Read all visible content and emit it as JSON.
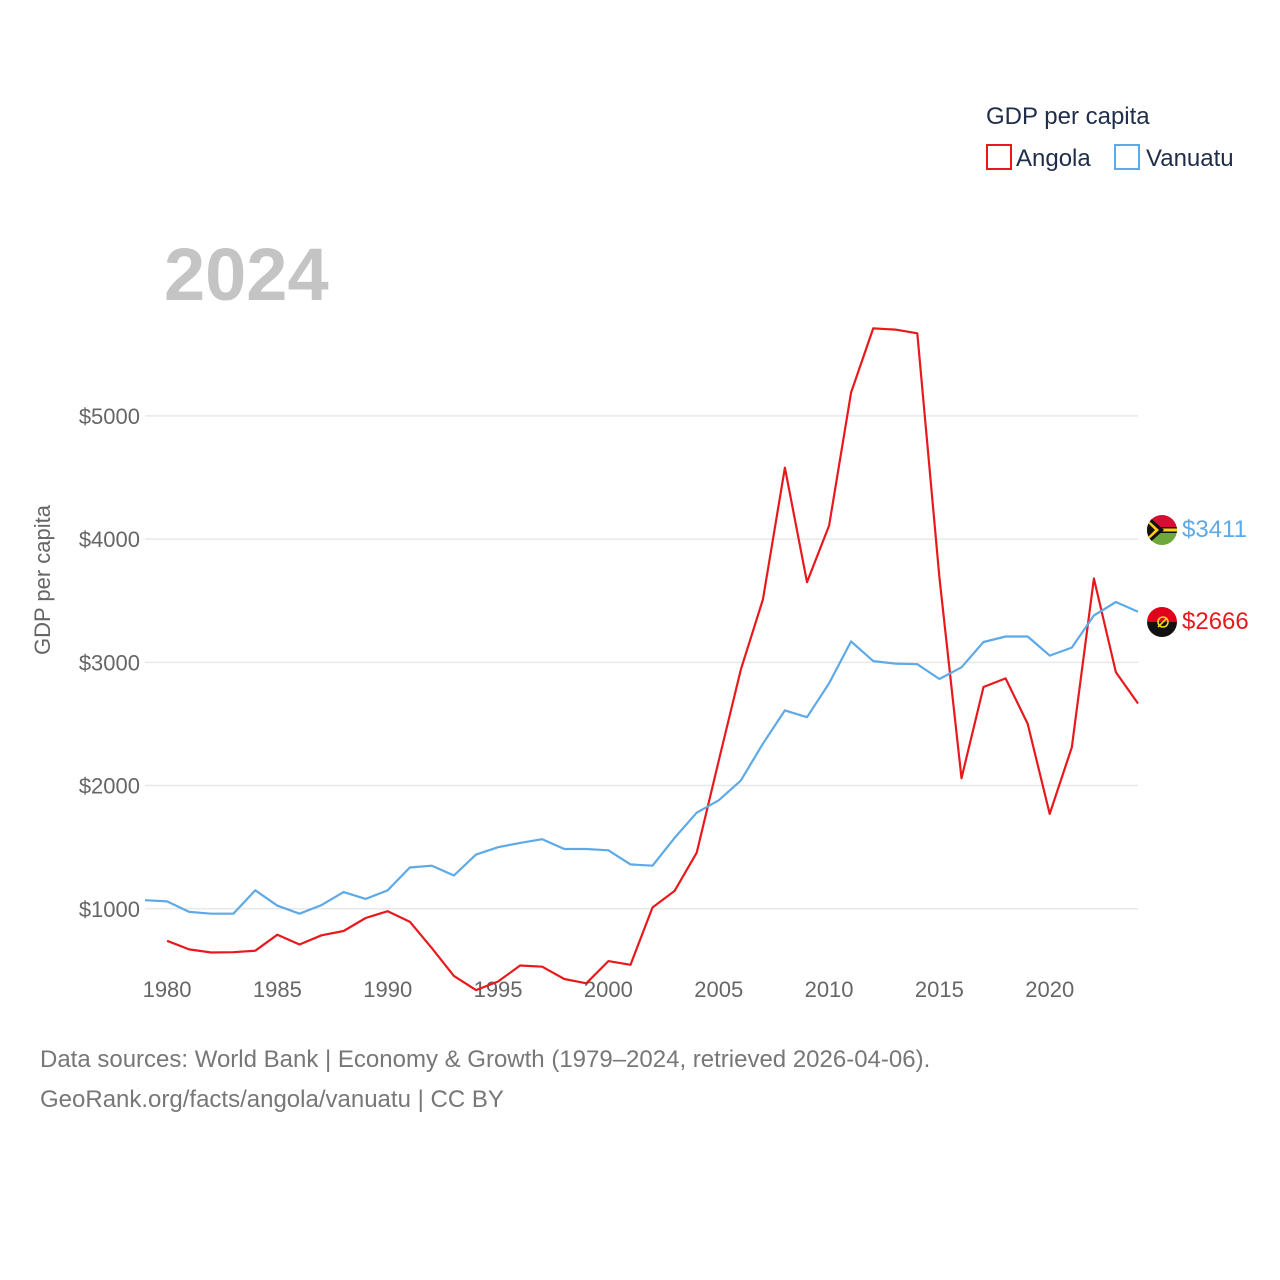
{
  "chart_data": {
    "type": "line",
    "year_label": "2024",
    "ylabel": "GDP per capita",
    "xlabel": "",
    "xlim": [
      1979,
      2024
    ],
    "ylim": [
      0,
      5900
    ],
    "x_ticks": [
      1980,
      1985,
      1990,
      1995,
      2000,
      2005,
      2010,
      2015,
      2020
    ],
    "x_tick_labels": [
      "1980",
      "1985",
      "1990",
      "1995",
      "2000",
      "2005",
      "2010",
      "2015",
      "2020"
    ],
    "y_ticks": [
      1000,
      2000,
      3000,
      4000,
      5000
    ],
    "y_tick_labels": [
      "$1000",
      "$2000",
      "$3000",
      "$4000",
      "$5000"
    ],
    "grid": true,
    "legend": {
      "title": "GDP per capita",
      "position": "top-right",
      "entries": [
        "Angola",
        "Vanuatu"
      ]
    },
    "series": [
      {
        "name": "Angola",
        "color": "#e8191c",
        "flag": "angola-flag",
        "end_label": "$2666",
        "x": [
          1980,
          1981,
          1982,
          1983,
          1984,
          1985,
          1986,
          1987,
          1988,
          1989,
          1990,
          1991,
          1992,
          1993,
          1994,
          1995,
          1996,
          1997,
          1998,
          1999,
          2000,
          2001,
          2002,
          2003,
          2004,
          2005,
          2006,
          2007,
          2008,
          2009,
          2010,
          2011,
          2012,
          2013,
          2014,
          2015,
          2016,
          2017,
          2018,
          2019,
          2020,
          2021,
          2022,
          2023,
          2024
        ],
        "values": [
          740,
          670,
          645,
          648,
          660,
          790,
          710,
          785,
          820,
          925,
          980,
          895,
          680,
          455,
          340,
          410,
          540,
          530,
          430,
          395,
          575,
          545,
          1010,
          1145,
          1455,
          2200,
          2940,
          3510,
          4580,
          3650,
          4110,
          5190,
          5710,
          5700,
          5670,
          3690,
          2060,
          2800,
          2870,
          2500,
          1770,
          2310,
          3680,
          2920,
          2666
        ]
      },
      {
        "name": "Vanuatu",
        "color": "#5ea9e8",
        "flag": "vanuatu-flag",
        "end_label": "$3411",
        "x": [
          1979,
          1980,
          1981,
          1982,
          1983,
          1984,
          1985,
          1986,
          1987,
          1988,
          1989,
          1990,
          1991,
          1992,
          1993,
          1994,
          1995,
          1996,
          1997,
          1998,
          1999,
          2000,
          2001,
          2002,
          2003,
          2004,
          2005,
          2006,
          2007,
          2008,
          2009,
          2010,
          2011,
          2012,
          2013,
          2014,
          2015,
          2016,
          2017,
          2018,
          2019,
          2020,
          2021,
          2022,
          2023,
          2024
        ],
        "values": [
          1070,
          1060,
          975,
          960,
          960,
          1150,
          1025,
          960,
          1030,
          1135,
          1080,
          1150,
          1335,
          1350,
          1270,
          1440,
          1500,
          1535,
          1565,
          1485,
          1485,
          1475,
          1360,
          1350,
          1575,
          1780,
          1880,
          2040,
          2340,
          2610,
          2555,
          2830,
          3170,
          3010,
          2990,
          2985,
          2865,
          2960,
          3165,
          3210,
          3210,
          3055,
          3120,
          3380,
          3490,
          3411
        ]
      }
    ]
  },
  "footer": {
    "line1": "Data sources: World Bank | Economy & Growth (1979–2024, retrieved 2026-04-06).",
    "line2": "GeoRank.org/facts/angola/vanuatu | CC BY"
  }
}
